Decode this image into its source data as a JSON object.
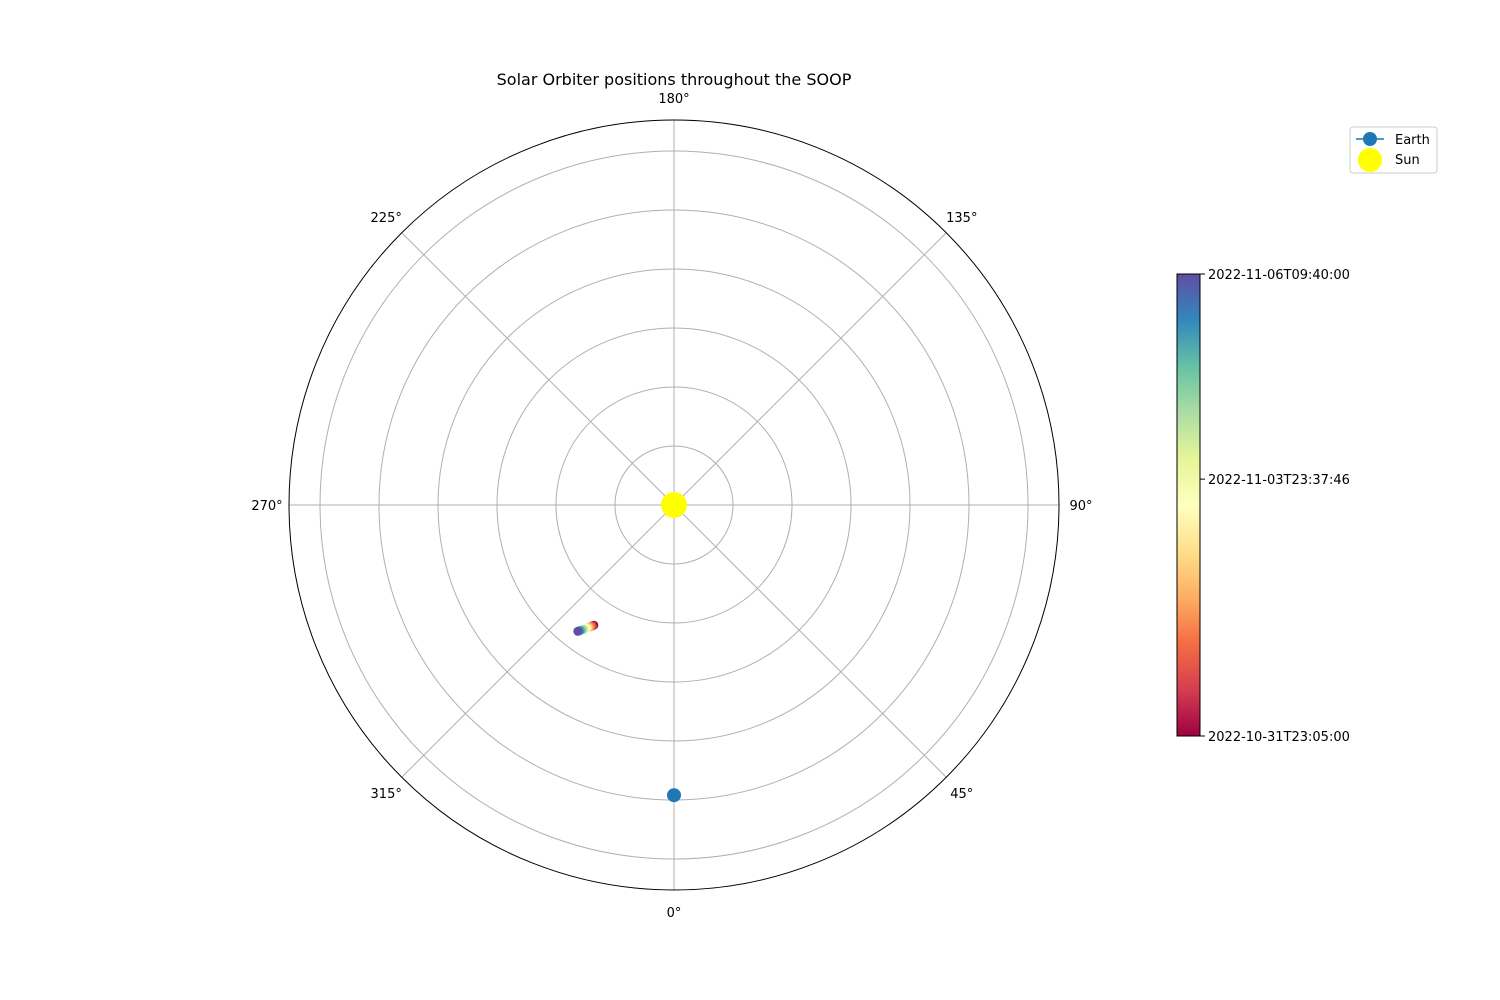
{
  "chart_data": {
    "type": "scatter",
    "projection": "polar",
    "title": "Solar Orbiter positions throughout the SOOP",
    "theta_zero_location": "bottom",
    "theta_direction": "counterclockwise",
    "theta_ticks": [
      "0°",
      "45°",
      "90°",
      "135°",
      "180°",
      "225°",
      "270°",
      "315°"
    ],
    "r_rings": 6,
    "grid": true,
    "series": [
      {
        "name": "Earth",
        "marker": "circle-with-line",
        "color": "#1f77b4",
        "points": [
          {
            "theta_deg": 0.0,
            "r": 0.98
          }
        ]
      },
      {
        "name": "Sun",
        "marker": "circle",
        "color": "#ffff00",
        "points": [
          {
            "theta_deg": 0.0,
            "r": 0.0
          }
        ]
      },
      {
        "name": "",
        "colormap": "Spectral",
        "points": [
          {
            "theta_deg": 326.3,
            "r": 0.488,
            "t": 0.0
          },
          {
            "theta_deg": 326.0,
            "r": 0.492,
            "t": 0.08
          },
          {
            "theta_deg": 325.7,
            "r": 0.496,
            "t": 0.17
          },
          {
            "theta_deg": 325.4,
            "r": 0.5,
            "t": 0.25
          },
          {
            "theta_deg": 325.1,
            "r": 0.504,
            "t": 0.33
          },
          {
            "theta_deg": 324.8,
            "r": 0.508,
            "t": 0.42
          },
          {
            "theta_deg": 324.5,
            "r": 0.512,
            "t": 0.5
          },
          {
            "theta_deg": 324.2,
            "r": 0.516,
            "t": 0.58
          },
          {
            "theta_deg": 323.9,
            "r": 0.52,
            "t": 0.67
          },
          {
            "theta_deg": 323.6,
            "r": 0.524,
            "t": 0.75
          },
          {
            "theta_deg": 323.3,
            "r": 0.528,
            "t": 0.83
          },
          {
            "theta_deg": 323.0,
            "r": 0.532,
            "t": 0.92
          },
          {
            "theta_deg": 322.7,
            "r": 0.536,
            "t": 1.0
          }
        ]
      }
    ],
    "legend": {
      "placement": "top-right",
      "entries": [
        "Earth",
        "Sun"
      ]
    },
    "colorbar": {
      "colormap": "Spectral",
      "ticks": [
        "2022-10-31T23:05:00",
        "2022-11-03T23:37:46",
        "2022-11-06T09:40:00"
      ],
      "tick_fractions": [
        0.0,
        0.556,
        1.0
      ]
    }
  }
}
